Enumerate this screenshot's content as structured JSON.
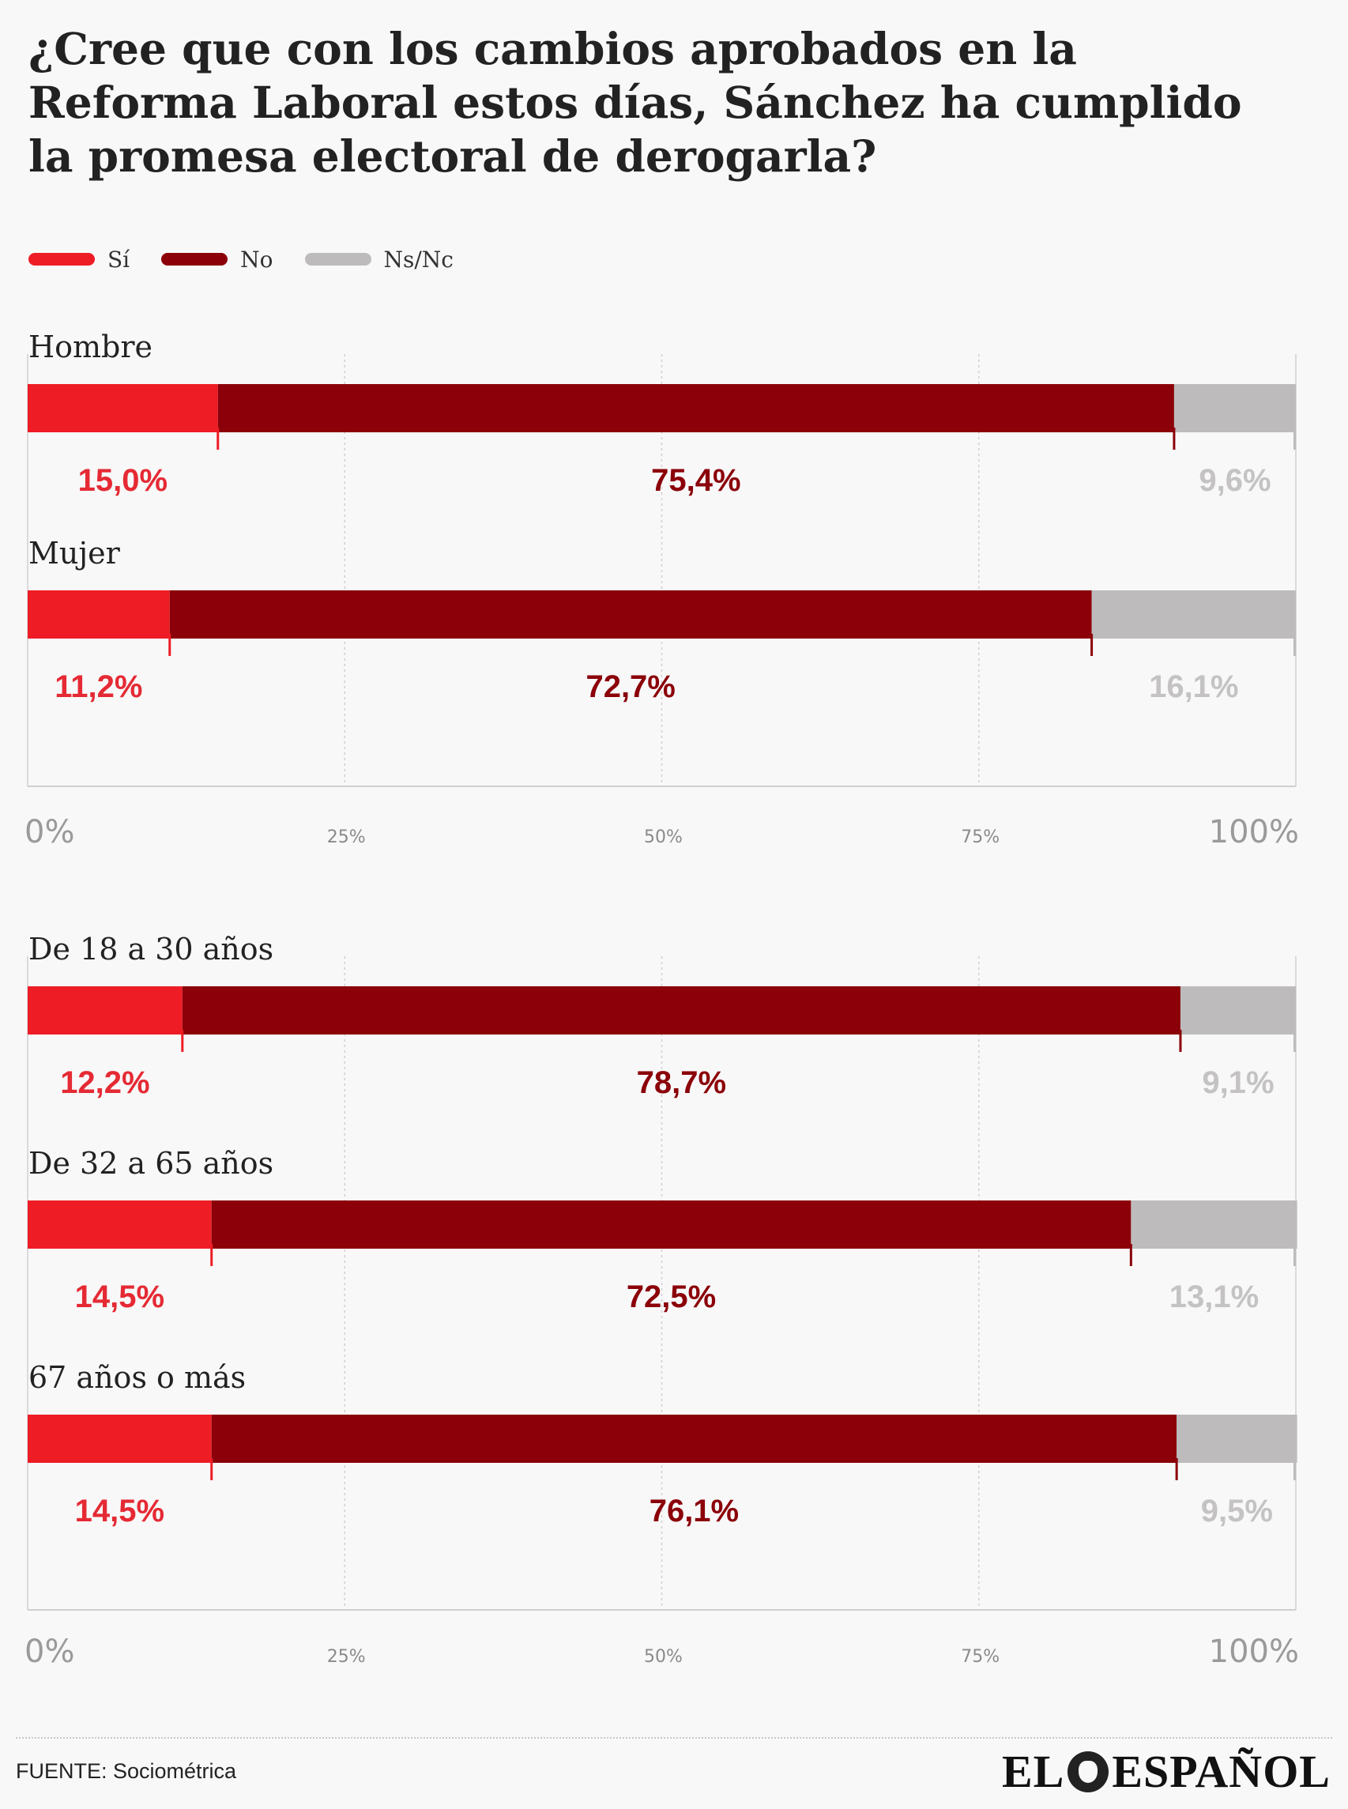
{
  "title": "¿Cree que con los cambios aprobados en la Reforma Laboral estos días, Sánchez ha cumplido la promesa electoral de derogarla?",
  "legend": [
    {
      "label": "Sí",
      "color": "#ee1c25"
    },
    {
      "label": "No",
      "color": "#8b0009"
    },
    {
      "label": "Ns/Nc",
      "color": "#bdbbbb"
    }
  ],
  "footer": {
    "source": "FUENTE: Sociométrica",
    "logo_left": "EL",
    "logo_right": "ESPAÑOL"
  },
  "chart_data": [
    {
      "type": "bar",
      "stacked": true,
      "orientation": "horizontal",
      "categories": [
        "Hombre",
        "Mujer"
      ],
      "series": [
        {
          "name": "Sí",
          "values": [
            15.0,
            11.2
          ],
          "labels": [
            "15,0%",
            "11,2%"
          ],
          "color": "#ee1c25",
          "label_color": "#e52a34"
        },
        {
          "name": "No",
          "values": [
            75.4,
            72.7
          ],
          "labels": [
            "75,4%",
            "72,7%"
          ],
          "color": "#8b0009",
          "label_color": "#8b0009"
        },
        {
          "name": "Ns/Nc",
          "values": [
            9.6,
            16.1
          ],
          "labels": [
            "9,6%",
            "16,1%"
          ],
          "color": "#bdbbbb",
          "label_color": "#c4c2c2"
        }
      ],
      "xlim": [
        0,
        100
      ],
      "x_ticks": [
        "0%",
        "25%",
        "50%",
        "75%",
        "100%"
      ],
      "grid": true
    },
    {
      "type": "bar",
      "stacked": true,
      "orientation": "horizontal",
      "categories": [
        "De 18 a 30 años",
        "De 32 a 65 años",
        "67 años o más"
      ],
      "series": [
        {
          "name": "Sí",
          "values": [
            12.2,
            14.5,
            14.5
          ],
          "labels": [
            "12,2%",
            "14,5%",
            "14,5%"
          ],
          "color": "#ee1c25",
          "label_color": "#e52a34"
        },
        {
          "name": "No",
          "values": [
            78.7,
            72.5,
            76.1
          ],
          "labels": [
            "78,7%",
            "72,5%",
            "76,1%"
          ],
          "color": "#8b0009",
          "label_color": "#8b0009"
        },
        {
          "name": "Ns/Nc",
          "values": [
            9.1,
            13.1,
            9.5
          ],
          "labels": [
            "9,1%",
            "13,1%",
            "9,5%"
          ],
          "color": "#bdbbbb",
          "label_color": "#c4c2c2"
        }
      ],
      "xlim": [
        0,
        100
      ],
      "x_ticks": [
        "0%",
        "25%",
        "50%",
        "75%",
        "100%"
      ],
      "grid": true
    }
  ]
}
